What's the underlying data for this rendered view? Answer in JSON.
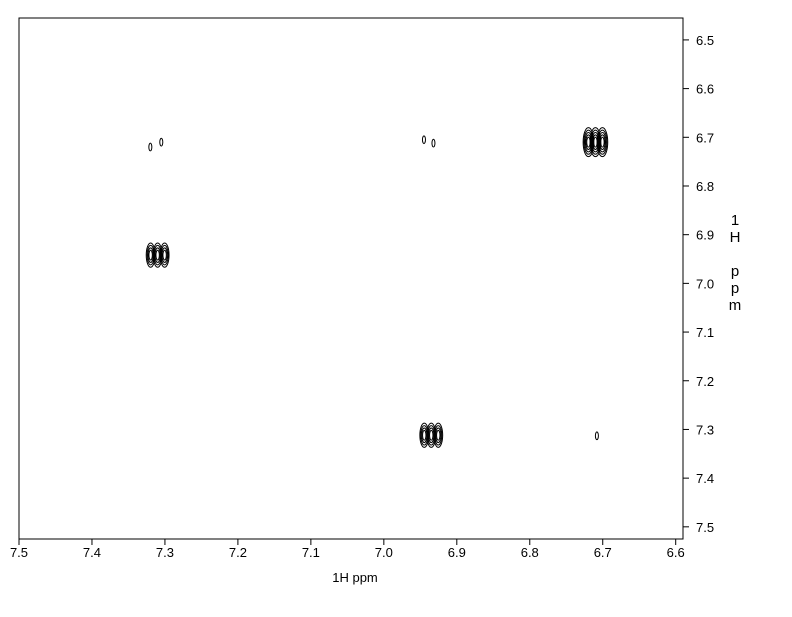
{
  "chart_data": {
    "type": "contour",
    "x_label": "1H ppm",
    "y_label": "1H ppm",
    "xlim": [
      7.5,
      6.59
    ],
    "ylim": [
      6.455,
      7.525
    ],
    "xticks": [
      7.5,
      7.4,
      7.3,
      7.2,
      7.1,
      {
        "value": 7,
        "label": "7.0"
      },
      6.9,
      6.8,
      6.7,
      6.6
    ],
    "yticks": [
      6.5,
      6.6,
      6.7,
      6.8,
      6.9,
      {
        "value": 7,
        "label": "7.0"
      },
      7.1,
      7.2,
      7.3,
      7.4,
      7.5
    ],
    "color": "#000000",
    "peaks": {
      "x": [
        7.32,
        7.305,
        6.945,
        6.932,
        6.71,
        7.31,
        6.935,
        6.708
      ],
      "y": [
        6.72,
        6.71,
        6.705,
        6.712,
        6.71,
        6.942,
        7.312,
        7.313
      ],
      "intensity": [
        0.1,
        0.2,
        0.05,
        0.25,
        1,
        0.8,
        0.8,
        0.1
      ]
    }
  }
}
